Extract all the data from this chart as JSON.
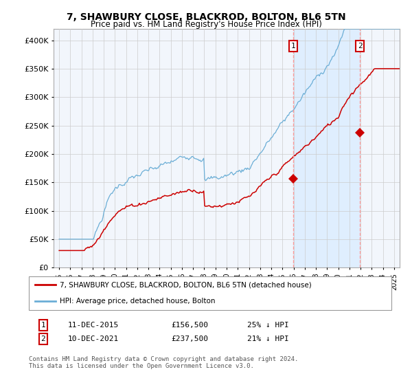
{
  "title": "7, SHAWBURY CLOSE, BLACKROD, BOLTON, BL6 5TN",
  "subtitle": "Price paid vs. HM Land Registry's House Price Index (HPI)",
  "legend_line1": "7, SHAWBURY CLOSE, BLACKROD, BOLTON, BL6 5TN (detached house)",
  "legend_line2": "HPI: Average price, detached house, Bolton",
  "annotation1_label": "1",
  "annotation1_date": "11-DEC-2015",
  "annotation1_price": "£156,500",
  "annotation1_pct": "25% ↓ HPI",
  "annotation1_year": 2015.95,
  "annotation1_value": 156500,
  "annotation2_label": "2",
  "annotation2_date": "10-DEC-2021",
  "annotation2_price": "£237,500",
  "annotation2_pct": "21% ↓ HPI",
  "annotation2_year": 2021.95,
  "annotation2_value": 237500,
  "hpi_color": "#6baed6",
  "price_color": "#cc0000",
  "vline_color": "#ff9999",
  "shade_color": "#ddeeff",
  "annotation_box_color": "#cc0000",
  "background_color": "#ffffff",
  "plot_bg_color": "#f2f6fc",
  "grid_color": "#cccccc",
  "ylim": [
    0,
    420000
  ],
  "yticks": [
    0,
    50000,
    100000,
    150000,
    200000,
    250000,
    300000,
    350000,
    400000
  ],
  "xmin": 1994.5,
  "xmax": 2025.5,
  "footnote": "Contains HM Land Registry data © Crown copyright and database right 2024.\nThis data is licensed under the Open Government Licence v3.0."
}
